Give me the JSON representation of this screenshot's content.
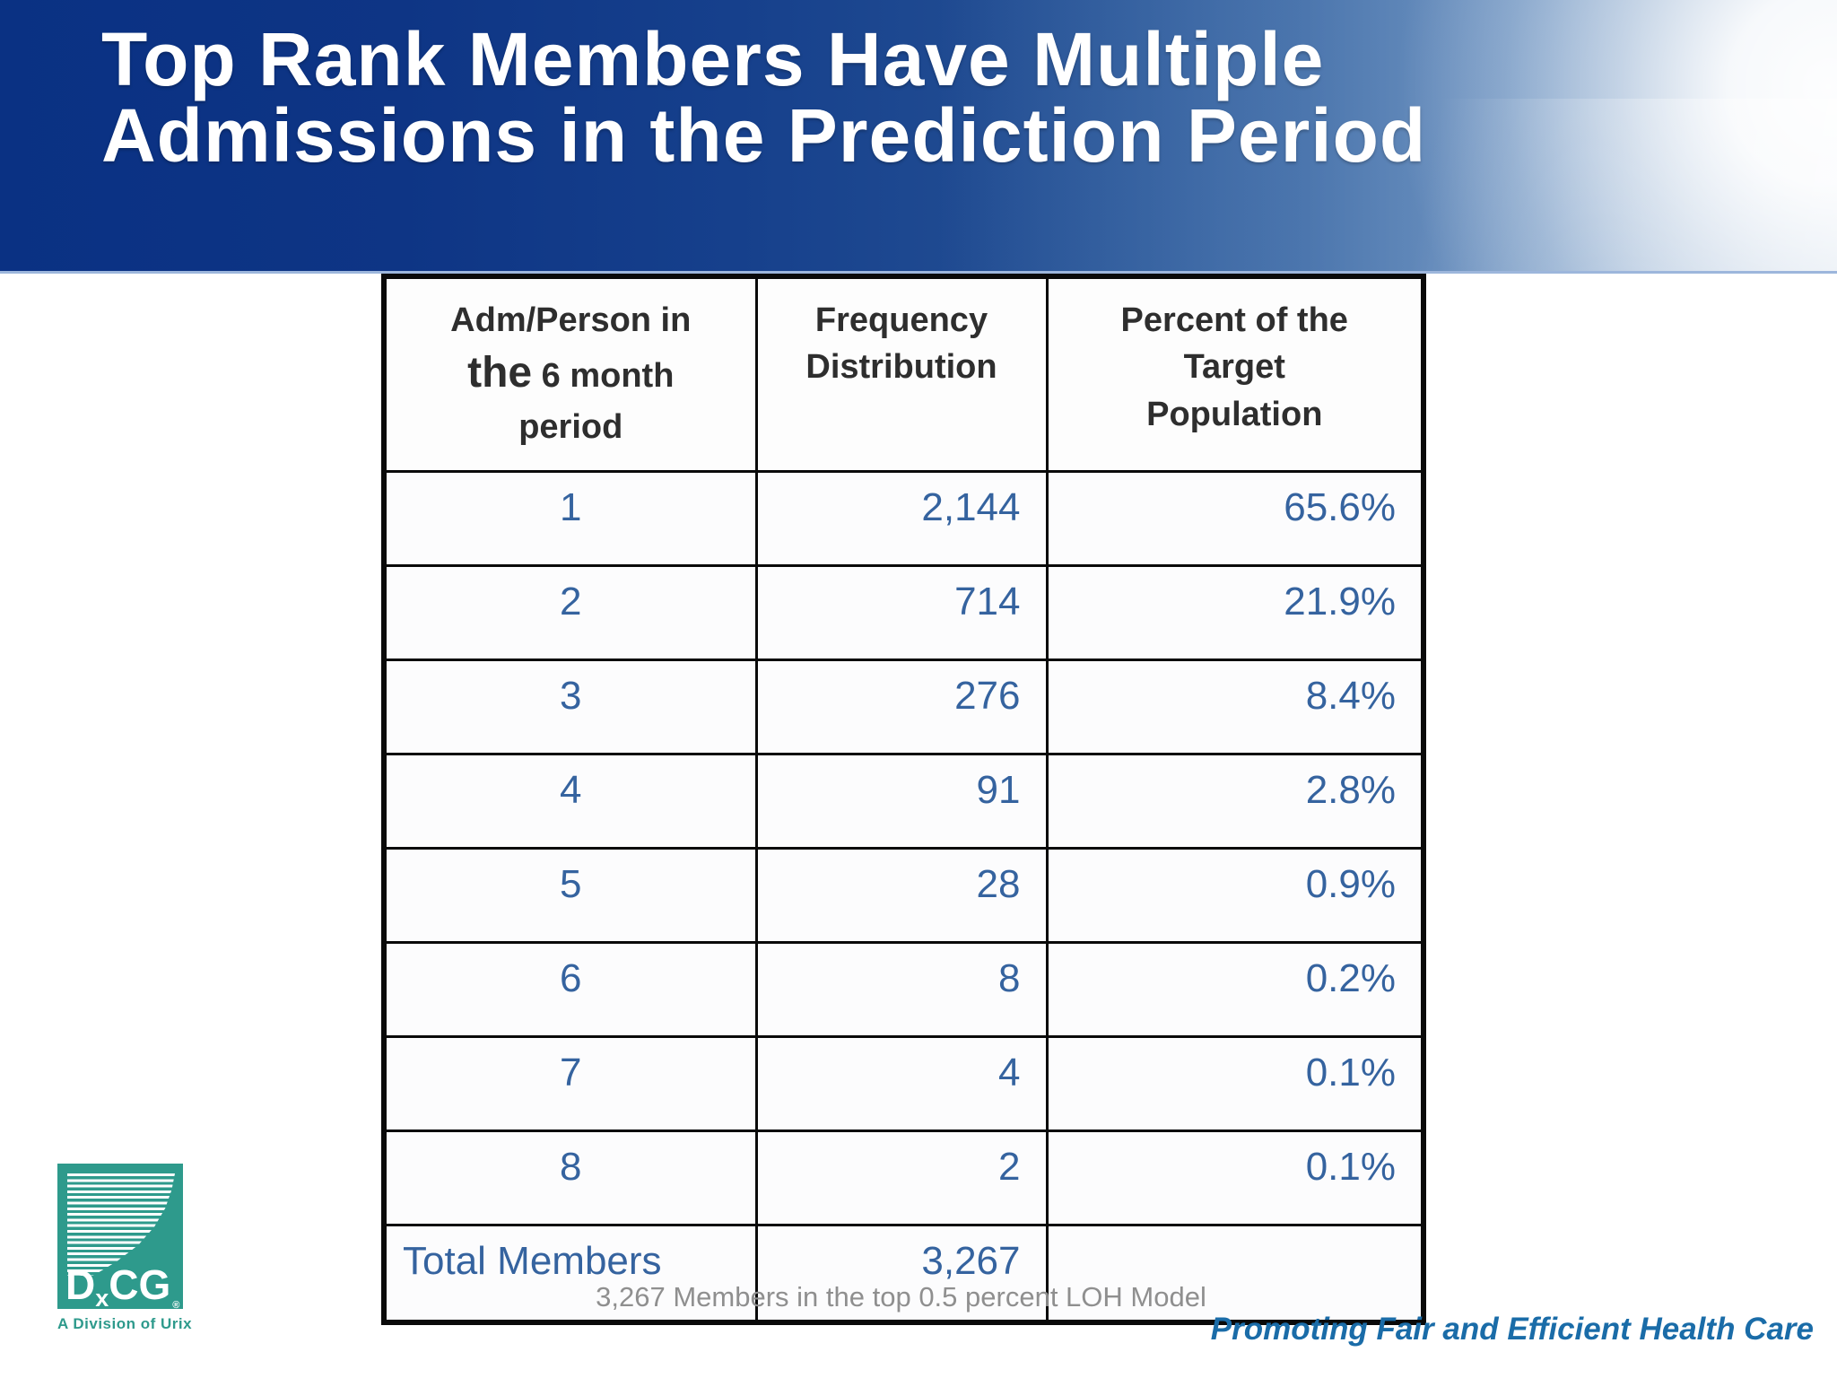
{
  "header": {
    "title_line1": "Top Rank Members Have Multiple",
    "title_line2": "Admissions in the Prediction Period"
  },
  "table": {
    "columns": {
      "col1_line1": "Adm/Person in",
      "col1_the": "the",
      "col1_line2_rest": " 6 month",
      "col1_line3": "period",
      "col2_lines": [
        "Frequency",
        "Distribution"
      ],
      "col3_lines": [
        "Percent of the",
        "Target",
        "Population"
      ]
    },
    "rows": [
      {
        "adm": "1",
        "freq": "2,144",
        "pct": "65.6%"
      },
      {
        "adm": "2",
        "freq": "714",
        "pct": "21.9%"
      },
      {
        "adm": "3",
        "freq": "276",
        "pct": "8.4%"
      },
      {
        "adm": "4",
        "freq": "91",
        "pct": "2.8%"
      },
      {
        "adm": "5",
        "freq": "28",
        "pct": "0.9%"
      },
      {
        "adm": "6",
        "freq": "8",
        "pct": "0.2%"
      },
      {
        "adm": "7",
        "freq": "4",
        "pct": "0.1%"
      },
      {
        "adm": "8",
        "freq": "2",
        "pct": "0.1%"
      }
    ],
    "total": {
      "label": "Total Members",
      "freq": "3,267",
      "pct": ""
    }
  },
  "caption": "3,267 Members in the top 0.5 percent LOH Model",
  "footer": {
    "tagline": "Promoting Fair and Efficient Health Care"
  },
  "logo": {
    "d": "D",
    "x": "x",
    "cg": "CG",
    "mark": "®",
    "tagline": "A Division of Urix"
  },
  "colors": {
    "banner_navy": "#0a3183",
    "banner_sky_blue": "#7b9cc4",
    "data_blue": "#35639f",
    "header_text": "#2e2e2e",
    "caption_gray": "#8f8f8f",
    "logo_teal": "#2e9a8c",
    "tagline_blue": "#1a6ca8",
    "table_border": "#0a0a0a"
  }
}
